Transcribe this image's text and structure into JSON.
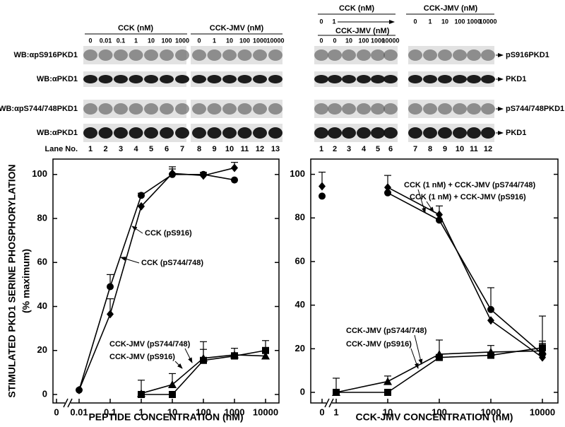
{
  "blots": {
    "left": {
      "groups": [
        {
          "title": "CCK (nM)",
          "doses": [
            0,
            0.01,
            0.1,
            1,
            10,
            100,
            1000
          ]
        },
        {
          "title": "CCK-JMV (nM)",
          "doses": [
            0,
            1,
            10,
            100,
            1000,
            10000
          ]
        }
      ],
      "rows": [
        "WB:αpS916PKD1",
        "WB:αPKD1",
        "WB:αpS744/748PKD1",
        "WB:αPKD1"
      ],
      "lane_label": "Lane No.",
      "lanes": [
        1,
        2,
        3,
        4,
        5,
        6,
        7,
        8,
        9,
        10,
        11,
        12,
        13
      ]
    },
    "right": {
      "cck_title": "CCK (nM)",
      "cck_doses": [
        0,
        1
      ],
      "groups": [
        {
          "title": "CCK-JMV (nM)",
          "doses": [
            0,
            0,
            10,
            100,
            1000,
            10000
          ]
        },
        {
          "title": "CCK-JMV  (nM)",
          "doses": [
            0,
            1,
            10,
            100,
            1000,
            10000
          ]
        }
      ],
      "rows": [
        "pS916PKD1",
        "PKD1",
        "pS744/748PKD1",
        "PKD1"
      ],
      "lanes": [
        1,
        2,
        3,
        4,
        5,
        6,
        7,
        8,
        9,
        10,
        11,
        12
      ]
    }
  },
  "chart_data": [
    {
      "type": "line",
      "ylabel": "STIMULATED PKD1 SERINE PHOSPHORYLATION",
      "ylabel_sub": "(% maximum)",
      "xlabel": "PEPTIDE CONCENTRATION (nM)",
      "categories": [
        "0",
        "0.01",
        "0.1",
        "1",
        "10",
        "100",
        "1000",
        "10000"
      ],
      "ylim": [
        0,
        107
      ],
      "yticks": [
        0,
        20,
        40,
        60,
        80,
        100
      ],
      "axis_break": true,
      "series": [
        {
          "name": "CCK (pS916)",
          "color": "#000000",
          "marker": "circle",
          "values": [
            null,
            2,
            49,
            90.5,
            100,
            100,
            97.5,
            null
          ],
          "errors": [
            null,
            null,
            5.5,
            1,
            3.5,
            1,
            null,
            null
          ]
        },
        {
          "name": "CCK (pS744/748)",
          "color": "#000000",
          "marker": "diamond",
          "values": [
            null,
            2,
            36.5,
            85.5,
            100.5,
            99.5,
            103,
            null
          ],
          "errors": [
            null,
            null,
            7,
            null,
            2,
            null,
            2.5,
            null
          ]
        },
        {
          "name": "CCK-JMV (pS744/748)",
          "color": "#000000",
          "marker": "triangle",
          "values": [
            null,
            null,
            null,
            0.5,
            4.5,
            16.5,
            18,
            17.5
          ],
          "errors": [
            null,
            null,
            null,
            null,
            5,
            7.5,
            3,
            null
          ]
        },
        {
          "name": "CCK-JMV (pS916)",
          "color": "#000000",
          "marker": "square",
          "values": [
            null,
            null,
            null,
            0,
            0,
            15.5,
            17.5,
            20
          ],
          "errors": [
            null,
            null,
            null,
            6.5,
            null,
            5,
            1.5,
            4.5
          ]
        }
      ]
    },
    {
      "type": "line",
      "xlabel": "CCK-JMV CONCENTRATION (nM)",
      "categories": [
        "0",
        "1",
        "10",
        "100",
        "1000",
        "10000"
      ],
      "ylim": [
        0,
        107
      ],
      "yticks": [
        0,
        20,
        40,
        60,
        80,
        100
      ],
      "axis_break": true,
      "series": [
        {
          "name": "CCK (1 nM) + CCK-JMV (pS744/748)",
          "color": "#000000",
          "marker": "diamond",
          "values": [
            94.5,
            null,
            94,
            81.5,
            33,
            16
          ],
          "errors": [
            6.5,
            null,
            5.5,
            4,
            null,
            null
          ]
        },
        {
          "name": "CCK (1 nM) + CCK-JMV (pS916)",
          "color": "#000000",
          "marker": "circle",
          "values": [
            90,
            null,
            91.5,
            79,
            38,
            17.5
          ],
          "errors": [
            null,
            null,
            null,
            null,
            10,
            5
          ]
        },
        {
          "name": "CCK-JMV (pS744/748)",
          "color": "#000000",
          "marker": "triangle",
          "values": [
            null,
            0,
            5,
            17.5,
            18.5,
            19
          ],
          "errors": [
            null,
            6.5,
            2.5,
            6.5,
            3,
            16
          ]
        },
        {
          "name": "CCK-JMV (pS916)",
          "color": "#000000",
          "marker": "square",
          "values": [
            null,
            0,
            0,
            16,
            17,
            20.5
          ],
          "errors": [
            null,
            null,
            null,
            null,
            null,
            3
          ]
        }
      ]
    }
  ]
}
